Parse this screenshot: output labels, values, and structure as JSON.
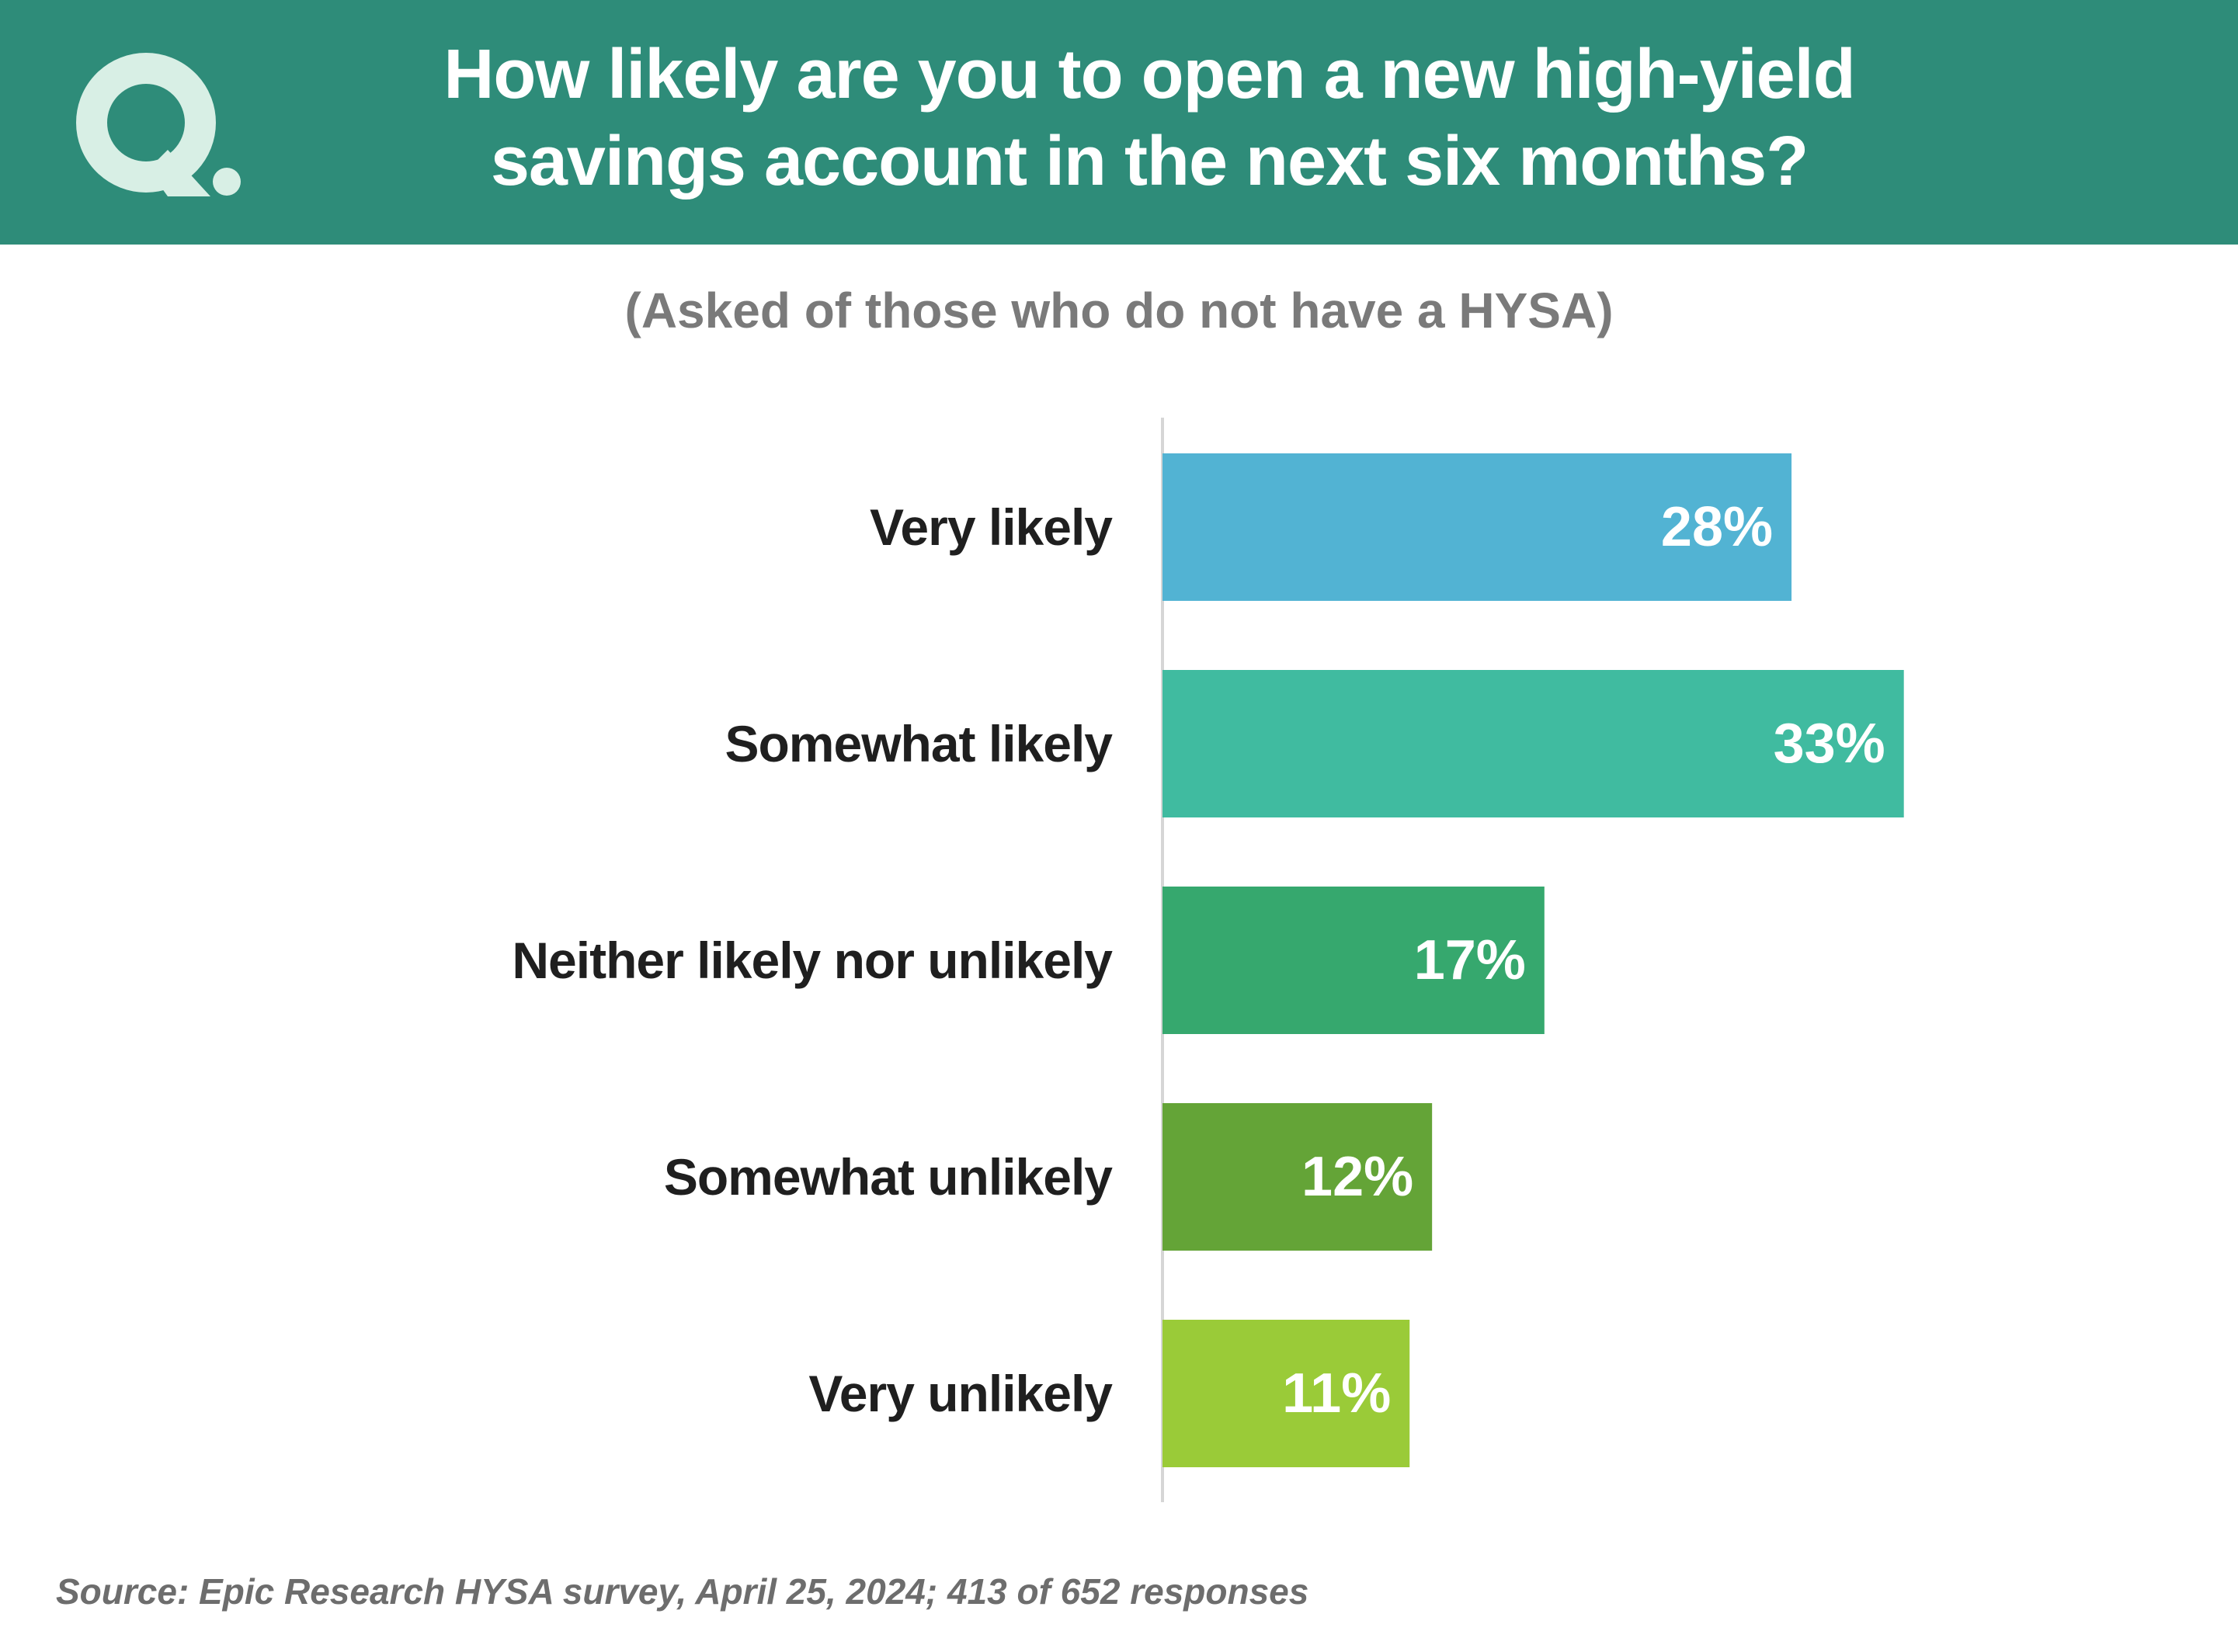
{
  "title_lines": [
    "How likely are you to open a new high-yield",
    "savings account in the next six months?"
  ],
  "subtitle": "(Asked of those who do not have a HYSA)",
  "source": "Source: Epic Research HYSA survey, April 25, 2024; 413 of 652 responses",
  "colors": {
    "header_bg": "#2e8c79",
    "logo": "#d8efe5",
    "axis": "#d6d6d6",
    "category_text": "#1f1f1f",
    "bar_label_text": "#ffffff"
  },
  "chart_data": {
    "type": "bar",
    "orientation": "horizontal",
    "categories": [
      "Very likely",
      "Somewhat likely",
      "Neither likely nor unlikely",
      "Somewhat unlikely",
      "Very unlikely"
    ],
    "values": [
      28,
      33,
      17,
      12,
      11
    ],
    "value_labels": [
      "28%",
      "33%",
      "17%",
      "12%",
      "11%"
    ],
    "bar_colors": [
      "#52b3d3",
      "#40bba0",
      "#36a86e",
      "#64a437",
      "#9acb38"
    ],
    "title": "How likely are you to open a new high-yield savings account in the next six months?",
    "subtitle": "(Asked of those who do not have a HYSA)",
    "xlabel": "",
    "ylabel": "",
    "xlim": [
      0,
      35
    ],
    "grid": false,
    "legend": "none"
  }
}
